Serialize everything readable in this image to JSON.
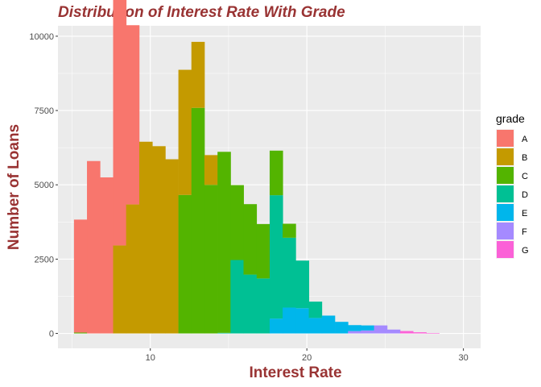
{
  "chart_data": {
    "type": "bar",
    "subtype": "stacked-histogram",
    "title": "Distribution of Interest Rate With Grade",
    "xlabel": "Interest Rate",
    "ylabel": "Number of Loans",
    "xlim": [
      4.1,
      31.1
    ],
    "ylim": [
      -500,
      10350
    ],
    "xticks": [
      10,
      20,
      30
    ],
    "yticks": [
      0,
      2500,
      5000,
      7500,
      10000
    ],
    "xtick_labels": [
      "10",
      "20",
      "30"
    ],
    "ytick_labels": [
      "0",
      "2500",
      "5000",
      "7500",
      "10000"
    ],
    "grid": true,
    "legend": {
      "title": "grade",
      "position": "right"
    },
    "bin_width": 0.833,
    "bins_x": [
      5.54,
      6.37,
      7.21,
      8.04,
      8.87,
      9.71,
      10.54,
      11.37,
      12.21,
      13.04,
      13.87,
      14.71,
      15.54,
      16.37,
      17.21,
      18.04,
      18.87,
      19.71,
      20.54,
      21.37,
      22.21,
      23.04,
      23.87,
      24.71,
      25.54,
      26.37,
      27.21,
      28.04
    ],
    "series": [
      {
        "name": "A",
        "color": "#F8766D",
        "values": [
          3800,
          5800,
          5250,
          9080,
          6030,
          0,
          0,
          0,
          0,
          0,
          0,
          0,
          0,
          0,
          0,
          0,
          0,
          0,
          0,
          0,
          0,
          0,
          0,
          0,
          0,
          0,
          0,
          0
        ]
      },
      {
        "name": "B",
        "color": "#C49A00",
        "values": [
          0,
          0,
          0,
          2960,
          4340,
          6450,
          6300,
          5860,
          4210,
          2220,
          1000,
          0,
          0,
          0,
          0,
          0,
          0,
          0,
          0,
          0,
          0,
          0,
          0,
          0,
          0,
          0,
          0,
          0
        ]
      },
      {
        "name": "C",
        "color": "#53B400",
        "values": [
          30,
          0,
          0,
          0,
          0,
          0,
          0,
          0,
          4660,
          7590,
          5000,
          6090,
          2520,
          2370,
          1830,
          1500,
          470,
          0,
          0,
          0,
          0,
          0,
          0,
          0,
          0,
          0,
          0,
          0
        ]
      },
      {
        "name": "D",
        "color": "#00C094",
        "values": [
          0,
          0,
          0,
          0,
          0,
          0,
          0,
          0,
          0,
          0,
          0,
          20,
          2470,
          1980,
          1850,
          4150,
          2350,
          1600,
          550,
          0,
          0,
          0,
          0,
          0,
          0,
          0,
          0,
          0
        ]
      },
      {
        "name": "E",
        "color": "#00B6EB",
        "values": [
          0,
          0,
          0,
          0,
          0,
          0,
          0,
          0,
          0,
          0,
          0,
          0,
          0,
          0,
          0,
          500,
          870,
          850,
          520,
          600,
          390,
          200,
          170,
          0,
          0,
          0,
          0,
          0
        ]
      },
      {
        "name": "F",
        "color": "#A58AFF",
        "values": [
          0,
          0,
          0,
          0,
          0,
          0,
          0,
          0,
          0,
          0,
          0,
          0,
          0,
          0,
          0,
          0,
          0,
          0,
          0,
          0,
          0,
          80,
          100,
          270,
          130,
          0,
          0,
          0
        ]
      },
      {
        "name": "G",
        "color": "#FB61D7",
        "values": [
          0,
          0,
          0,
          0,
          0,
          0,
          0,
          0,
          0,
          0,
          0,
          0,
          0,
          0,
          0,
          0,
          0,
          0,
          0,
          0,
          0,
          0,
          0,
          0,
          0,
          80,
          40,
          10
        ]
      }
    ]
  }
}
